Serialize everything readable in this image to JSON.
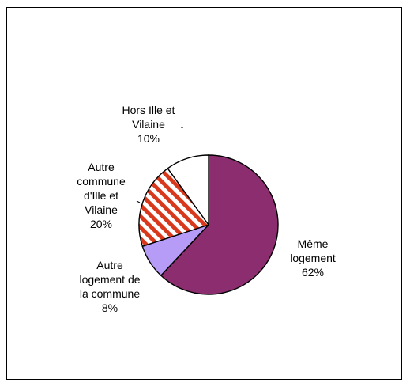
{
  "chart_data": {
    "type": "pie",
    "title": "",
    "legend": "none",
    "start_angle_deg": 0,
    "direction": "clockwise",
    "slices": [
      {
        "label_lines": [
          "Même",
          "logement",
          "62%"
        ],
        "value": 62,
        "color": "#8b2d6e",
        "pattern": "solid"
      },
      {
        "label_lines": [
          "Autre",
          "logement de",
          "la commune",
          "8%"
        ],
        "value": 8,
        "color": "#b79cf7",
        "pattern": "solid"
      },
      {
        "label_lines": [
          "Autre",
          "commune",
          "d'Ille et",
          "Vilaine",
          "20%"
        ],
        "value": 20,
        "color": "#d8391c",
        "pattern": "diagonal-stripes"
      },
      {
        "label_lines": [
          "Hors Ille et",
          "Vilaine",
          "10%"
        ],
        "value": 10,
        "color": "#ffffff",
        "pattern": "solid"
      }
    ]
  }
}
